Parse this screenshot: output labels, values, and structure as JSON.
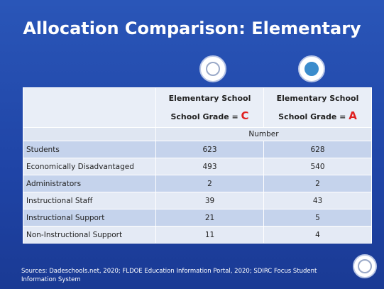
{
  "header": {
    "title": "Allocation Comparison: Elementary"
  },
  "table": {
    "columns": [
      {
        "line1": "Elementary School",
        "line2": "School Grade = ",
        "grade": "C"
      },
      {
        "line1": "Elementary School",
        "line2": "School Grade = ",
        "grade": "A"
      }
    ],
    "subheader": "Number",
    "rows": [
      [
        "Students",
        "623",
        "628"
      ],
      [
        "Economically Disadvantaged",
        "493",
        "540"
      ],
      [
        "Administrators",
        "2",
        "2"
      ],
      [
        "Instructional Staff",
        "39",
        "43"
      ],
      [
        "Instructional Support",
        "21",
        "5"
      ],
      [
        "Non-Instructional Support",
        "11",
        "4"
      ]
    ]
  },
  "footer": {
    "sources": "Sources: Dadeschools.net, 2020; FLDOE Education Information Portal, 2020; SDIRC Focus Student Information System"
  }
}
